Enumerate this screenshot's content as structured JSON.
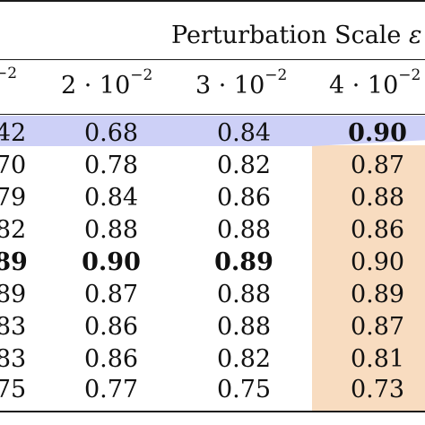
{
  "header": {
    "group_label": "Perturbation Scale",
    "group_symbol": "ε",
    "columns": [
      {
        "base": "−2",
        "partial": true
      },
      {
        "base": "2 · 10",
        "exp": "−2"
      },
      {
        "base": "3 · 10",
        "exp": "−2"
      },
      {
        "base": "4 · 10",
        "exp": "−2"
      }
    ]
  },
  "rows": [
    {
      "cells": [
        "42",
        "0.68",
        "0.84",
        "0.90"
      ],
      "bold": [
        false,
        false,
        false,
        true
      ]
    },
    {
      "cells": [
        "70",
        "0.78",
        "0.82",
        "0.87"
      ],
      "bold": [
        false,
        false,
        false,
        false
      ]
    },
    {
      "cells": [
        "79",
        "0.84",
        "0.86",
        "0.88"
      ],
      "bold": [
        false,
        false,
        false,
        false
      ]
    },
    {
      "cells": [
        "82",
        "0.88",
        "0.88",
        "0.86"
      ],
      "bold": [
        false,
        false,
        false,
        false
      ]
    },
    {
      "cells": [
        "89",
        "0.90",
        "0.89",
        "0.90"
      ],
      "bold": [
        true,
        true,
        true,
        false
      ]
    },
    {
      "cells": [
        "89",
        "0.87",
        "0.88",
        "0.89"
      ],
      "bold": [
        false,
        false,
        false,
        false
      ]
    },
    {
      "cells": [
        "83",
        "0.86",
        "0.88",
        "0.87"
      ],
      "bold": [
        false,
        false,
        false,
        false
      ]
    },
    {
      "cells": [
        "83",
        "0.86",
        "0.82",
        "0.81"
      ],
      "bold": [
        false,
        false,
        false,
        false
      ]
    },
    {
      "cells": [
        "75",
        "0.77",
        "0.75",
        "0.73"
      ],
      "bold": [
        false,
        false,
        false,
        false
      ]
    }
  ],
  "colors": {
    "highlight_row": "#cdd0f7",
    "highlight_col": "#f8dcc0",
    "rule": "#1a1a1a"
  }
}
